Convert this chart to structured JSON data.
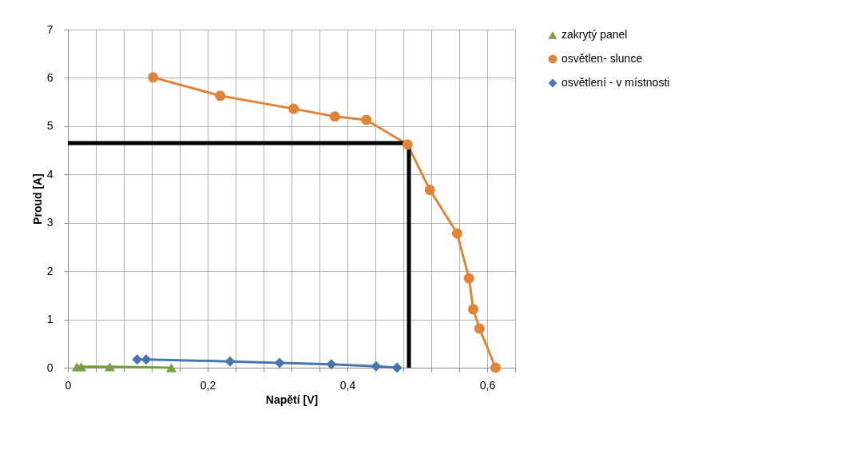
{
  "chart_data": {
    "type": "line",
    "xlabel": "Napětí [V]",
    "ylabel": "Proud [A]",
    "xlim": [
      0,
      0.64
    ],
    "ylim": [
      0,
      7
    ],
    "xticks": [
      {
        "value": 0,
        "label": "0"
      },
      {
        "value": 0.04,
        "label": null
      },
      {
        "value": 0.08,
        "label": null
      },
      {
        "value": 0.12,
        "label": null
      },
      {
        "value": 0.16,
        "label": null
      },
      {
        "value": 0.2,
        "label": "0,2"
      },
      {
        "value": 0.24,
        "label": null
      },
      {
        "value": 0.28,
        "label": null
      },
      {
        "value": 0.32,
        "label": null
      },
      {
        "value": 0.36,
        "label": null
      },
      {
        "value": 0.4,
        "label": "0,4"
      },
      {
        "value": 0.44,
        "label": null
      },
      {
        "value": 0.48,
        "label": null
      },
      {
        "value": 0.52,
        "label": null
      },
      {
        "value": 0.56,
        "label": null
      },
      {
        "value": 0.6,
        "label": "0,6"
      },
      {
        "value": 0.64,
        "label": null
      }
    ],
    "yticks": [
      0,
      1,
      2,
      3,
      4,
      5,
      6,
      7
    ],
    "grid": true,
    "legend": "right",
    "line_style": "solid",
    "series": [
      {
        "name": "zakrytý panel",
        "color": "#77a043",
        "marker": "triangle",
        "x": [
          0.013,
          0.019,
          0.06,
          0.148
        ],
        "values": [
          0.02,
          0.02,
          0.02,
          0
        ]
      },
      {
        "name": "osvětlen- slunce",
        "color": "#e0843a",
        "marker": "circle",
        "x": [
          0.122,
          0.218,
          0.323,
          0.382,
          0.427,
          0.486,
          0.518,
          0.557,
          0.574,
          0.58,
          0.589,
          0.612
        ],
        "values": [
          6.01,
          5.63,
          5.36,
          5.2,
          5.13,
          4.62,
          3.68,
          2.78,
          1.85,
          1.21,
          0.81,
          0
        ]
      },
      {
        "name": "osvětlení - v místnosti",
        "color": "#4a76b0",
        "marker": "diamond",
        "x": [
          0.099,
          0.112,
          0.232,
          0.303,
          0.377,
          0.441,
          0.471
        ],
        "values": [
          0.17,
          0.17,
          0.13,
          0.1,
          0.07,
          0.03,
          0
        ]
      },
      {
        "color": "#000000",
        "marker": "none",
        "x": [
          0,
          0.488,
          0.488
        ],
        "values": [
          4.65,
          4.65,
          0
        ]
      }
    ]
  }
}
